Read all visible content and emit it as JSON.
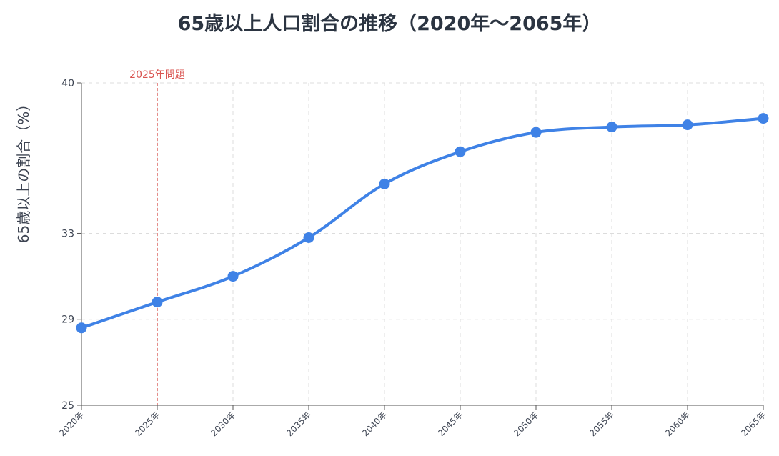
{
  "chart_data": {
    "type": "line",
    "title": "65歳以上人口割合の推移（2020年〜2065年）",
    "ylabel": "65歳以上の割合（%）",
    "xlabel": "",
    "categories": [
      "2020年",
      "2025年",
      "2030年",
      "2035年",
      "2040年",
      "2045年",
      "2050年",
      "2055年",
      "2060年",
      "2065年"
    ],
    "series": [
      {
        "values": [
          28.6,
          29.8,
          31.0,
          32.8,
          35.3,
          36.8,
          37.7,
          37.95,
          38.05,
          38.35
        ]
      }
    ],
    "ylim": [
      25,
      40
    ],
    "yticks": [
      25,
      29,
      33,
      40
    ],
    "grid": true,
    "line_color": "#3f82e6",
    "annotation": {
      "label": "2025年問題",
      "category": "2025年",
      "color": "#d9534f"
    }
  }
}
